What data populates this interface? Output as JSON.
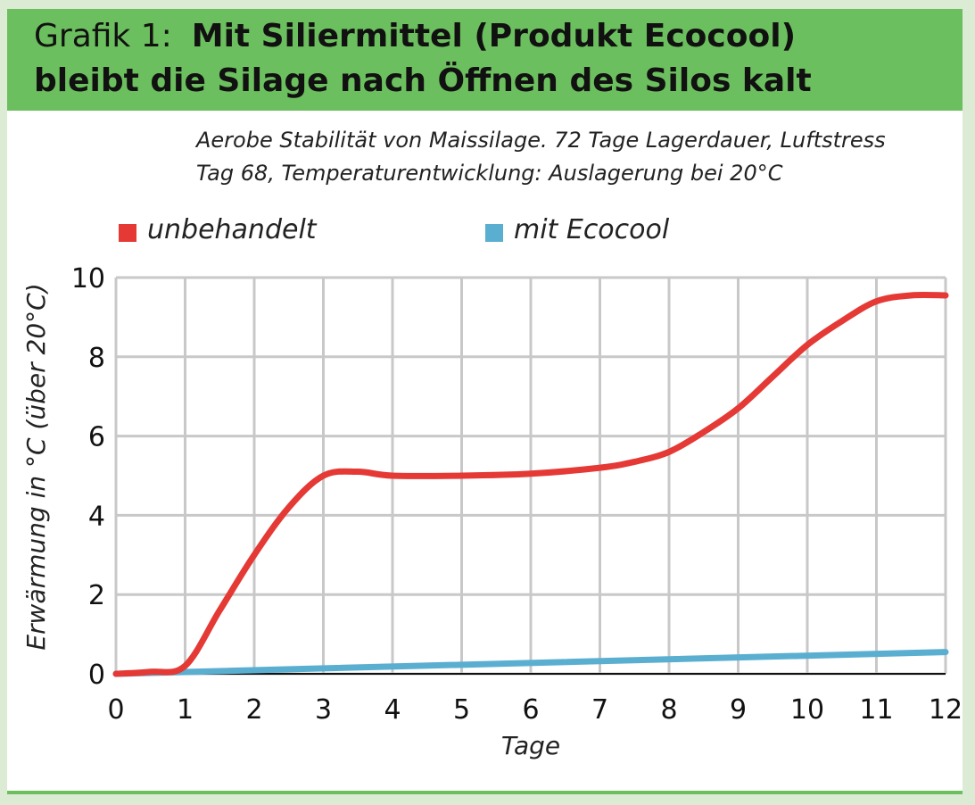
{
  "header": {
    "prefix": "Grafik 1:",
    "title_line1": "Mit Siliermittel (Produkt Ecocool)",
    "title_line2": "bleibt die Silage nach Öffnen des Silos kalt"
  },
  "subtitle": {
    "line1": "Aerobe Stabilität von Maissilage. 72 Tage Lagerdauer, Luftstress",
    "line2": "Tag 68, Temperaturentwicklung: Auslagerung bei 20°C"
  },
  "colors": {
    "header_bg": "#6cbf5e",
    "series_unbehandelt": "#e53935",
    "series_ecocool": "#5aafd1",
    "grid": "#c8c8c8"
  },
  "chart_data": {
    "type": "line",
    "title": "Mit Siliermittel (Produkt Ecocool) bleibt die Silage nach Öffnen des Silos kalt",
    "xlabel": "Tage",
    "ylabel": "Erwärmung in °C (über 20°C)",
    "xlim": [
      0,
      12
    ],
    "ylim": [
      0,
      10
    ],
    "x_ticks": [
      "0",
      "1",
      "2",
      "3",
      "4",
      "5",
      "6",
      "7",
      "8",
      "9",
      "10",
      "11",
      "12"
    ],
    "y_ticks": [
      "0",
      "2",
      "4",
      "6",
      "8",
      "10"
    ],
    "grid": true,
    "legend_position": "top",
    "series": [
      {
        "name": "unbehandelt",
        "x": [
          0,
          0.5,
          1,
          1.5,
          2,
          2.5,
          3,
          3.5,
          4,
          5,
          6,
          7,
          7.5,
          8,
          8.5,
          9,
          9.5,
          10,
          10.5,
          11,
          11.5,
          12
        ],
        "values": [
          0,
          0.05,
          0.2,
          1.6,
          3.0,
          4.2,
          5.0,
          5.1,
          5.0,
          5.0,
          5.05,
          5.2,
          5.35,
          5.6,
          6.1,
          6.7,
          7.5,
          8.3,
          8.9,
          9.4,
          9.55,
          9.55
        ]
      },
      {
        "name": "mit Ecocool",
        "x": [
          0,
          12
        ],
        "values": [
          0,
          0.55
        ]
      }
    ]
  }
}
